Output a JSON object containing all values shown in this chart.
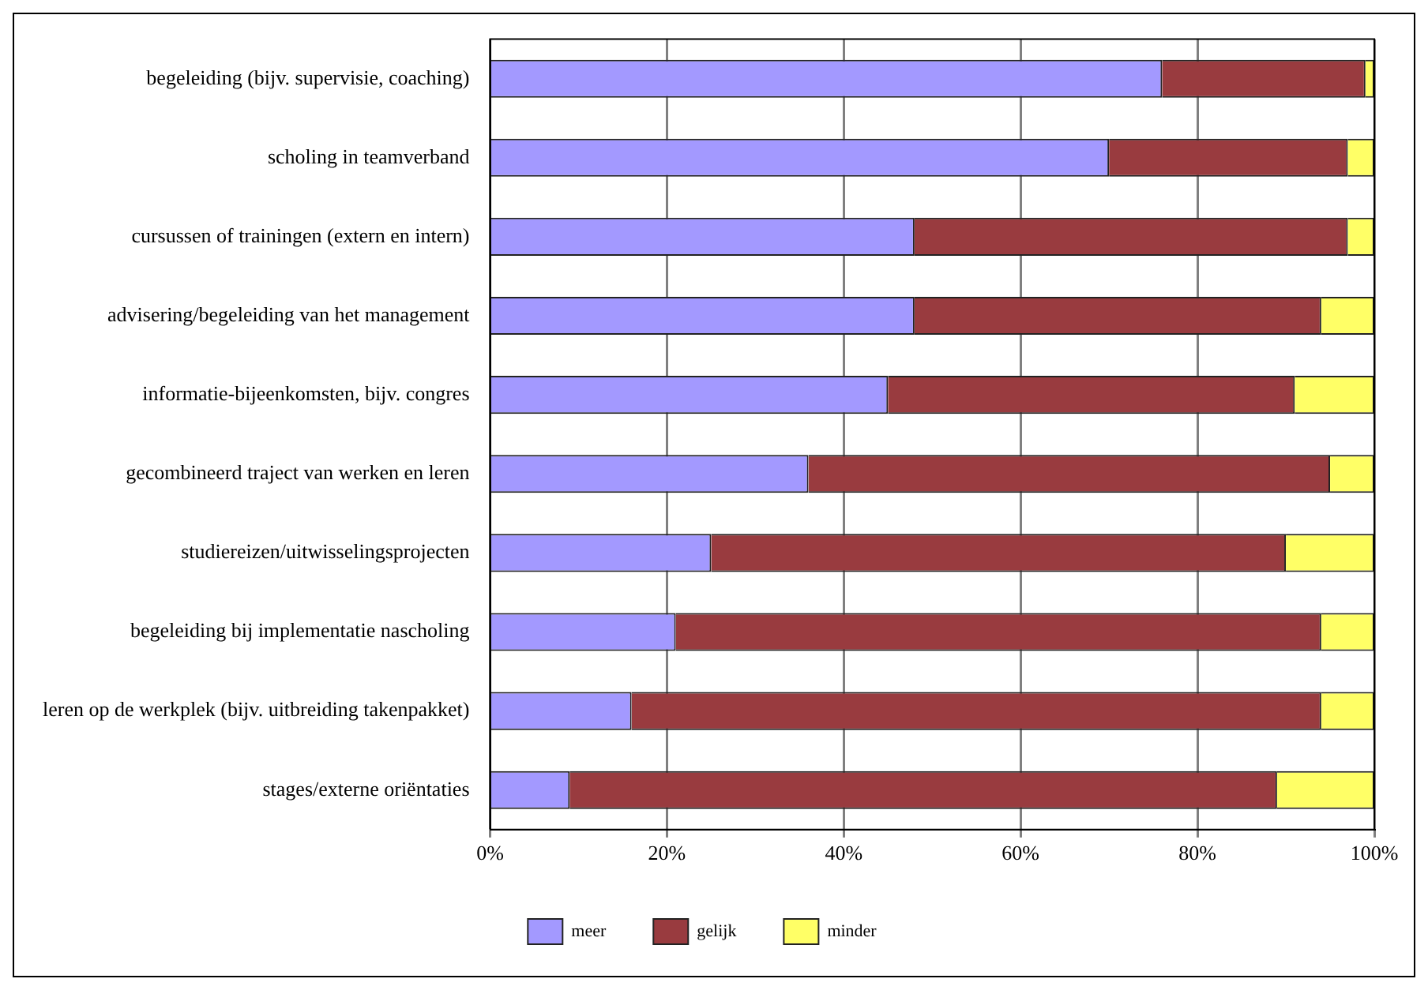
{
  "chart_data": {
    "type": "bar",
    "orientation": "horizontal",
    "stacked": true,
    "categories": [
      "begeleiding (bijv. supervisie, coaching)",
      "scholing in teamverband",
      "cursussen of trainingen (extern en intern)",
      "advisering/begeleiding van het management",
      "informatie-bijeenkomsten, bijv. congres",
      "gecombineerd traject van werken en leren",
      "studiereizen/uitwisselingsprojecten",
      "begeleiding bij implementatie nascholing",
      "leren op de werkplek (bijv. uitbreiding takenpakket)",
      "stages/externe oriëntaties"
    ],
    "series": [
      {
        "name": "meer",
        "color": "#a399ff",
        "values": [
          76,
          70,
          48,
          48,
          45,
          36,
          25,
          21,
          16,
          9
        ]
      },
      {
        "name": "gelijk",
        "color": "#993b3f",
        "values": [
          23,
          27,
          49,
          46,
          46,
          59,
          65,
          73,
          78,
          80
        ]
      },
      {
        "name": "minder",
        "color": "#ffff66",
        "values": [
          1,
          3,
          3,
          6,
          9,
          5,
          10,
          6,
          6,
          11
        ]
      }
    ],
    "xlim": [
      0,
      100
    ],
    "xticks": [
      {
        "value": 0,
        "label": "0%"
      },
      {
        "value": 20,
        "label": "20%"
      },
      {
        "value": 40,
        "label": "40%"
      },
      {
        "value": 60,
        "label": "60%"
      },
      {
        "value": 80,
        "label": "80%"
      },
      {
        "value": 100,
        "label": "100%"
      }
    ],
    "grid": "x",
    "legend": "bottom"
  }
}
